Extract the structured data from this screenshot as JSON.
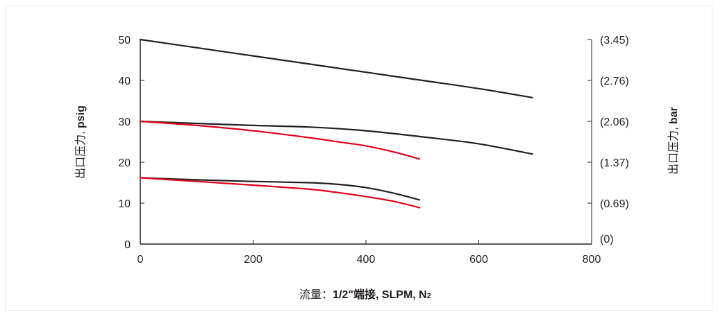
{
  "chart_data": {
    "type": "line",
    "x_axis": {
      "label_prefix": "流量：",
      "label_bold": "1/2\"端接, SLPM, N",
      "label_sub": "2",
      "range": [
        0,
        800
      ],
      "ticks": [
        "0",
        "200",
        "400",
        "600",
        "800"
      ]
    },
    "y_axis_left": {
      "label_prefix": "出口压力, ",
      "label_bold": "psig",
      "range": [
        0,
        50
      ],
      "ticks": [
        "0",
        "10",
        "20",
        "30",
        "40",
        "50"
      ]
    },
    "y_axis_right": {
      "label_prefix": "出口压力, ",
      "label_bold": "bar",
      "ticks": [
        "(0)",
        "(0.69)",
        "(1.37)",
        "(2.06)",
        "(2.76)",
        "(3.45)"
      ]
    },
    "grid": false,
    "series": [
      {
        "color": "#231f20",
        "points": [
          [
            0,
            50
          ],
          [
            100,
            48
          ],
          [
            200,
            46
          ],
          [
            300,
            44
          ],
          [
            400,
            42
          ],
          [
            500,
            40
          ],
          [
            600,
            38
          ],
          [
            695,
            35.8
          ]
        ]
      },
      {
        "color": "#231f20",
        "points": [
          [
            0,
            30
          ],
          [
            100,
            29.5
          ],
          [
            200,
            29
          ],
          [
            300,
            28.6
          ],
          [
            400,
            27.7
          ],
          [
            500,
            26.2
          ],
          [
            600,
            24.5
          ],
          [
            695,
            22
          ]
        ]
      },
      {
        "color": "#e2001a",
        "points": [
          [
            0,
            30
          ],
          [
            100,
            29
          ],
          [
            200,
            27.7
          ],
          [
            300,
            26
          ],
          [
            350,
            25
          ],
          [
            400,
            24
          ],
          [
            450,
            22.5
          ],
          [
            495,
            20.8
          ]
        ]
      },
      {
        "color": "#231f20",
        "points": [
          [
            0,
            16.2
          ],
          [
            100,
            15.7
          ],
          [
            200,
            15.3
          ],
          [
            300,
            15
          ],
          [
            350,
            14.6
          ],
          [
            400,
            13.8
          ],
          [
            450,
            12.4
          ],
          [
            495,
            10.8
          ]
        ]
      },
      {
        "color": "#e2001a",
        "points": [
          [
            0,
            16.2
          ],
          [
            100,
            15.3
          ],
          [
            200,
            14.4
          ],
          [
            300,
            13.4
          ],
          [
            350,
            12.6
          ],
          [
            400,
            11.6
          ],
          [
            450,
            10.4
          ],
          [
            495,
            8.9
          ]
        ]
      }
    ]
  }
}
